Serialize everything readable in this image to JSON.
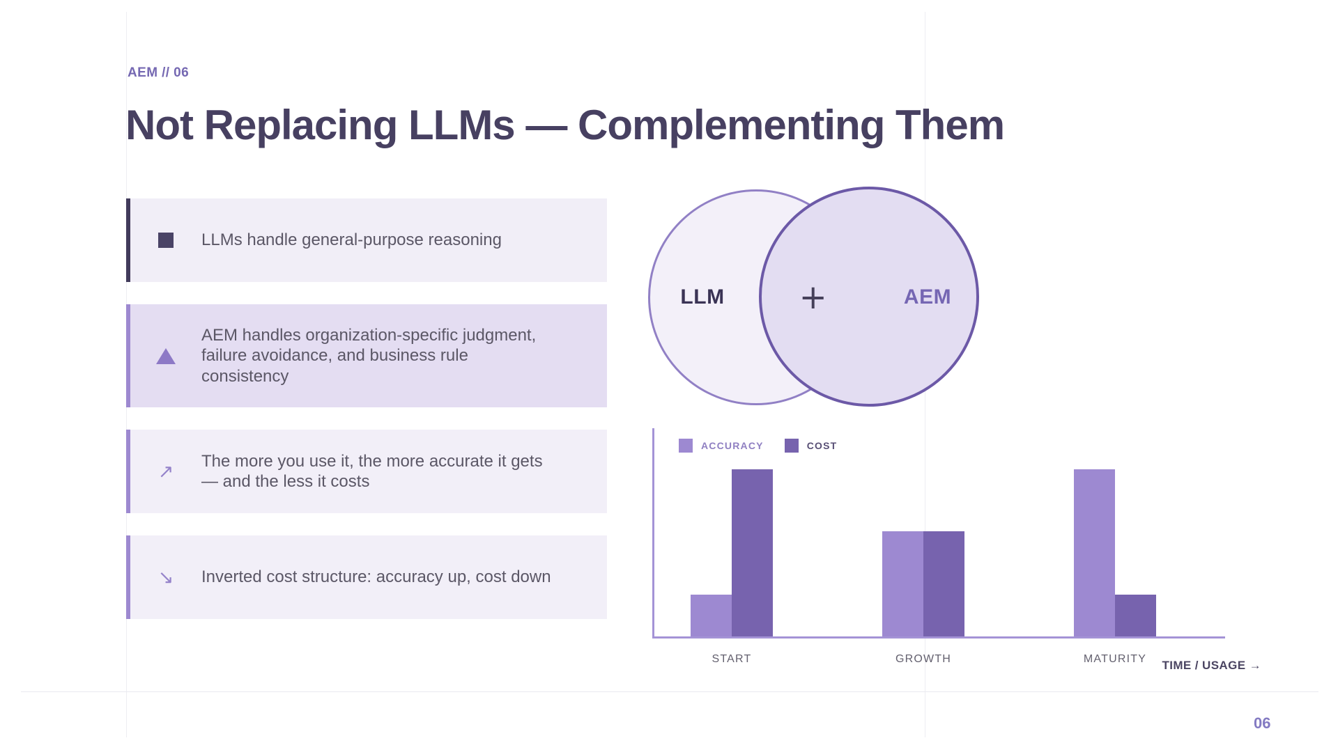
{
  "slide": {
    "eyebrow": "AEM // 06",
    "title": "Not Replacing LLMs — Complementing Them",
    "page_number": "06"
  },
  "list": {
    "items": [
      {
        "icon": "square-icon",
        "text": "LLMs handle general-purpose reasoning"
      },
      {
        "icon": "triangle-icon",
        "text": "AEM handles organization-specific judgment, failure avoidance, and business rule consistency"
      },
      {
        "icon": "arrow-up-right-icon",
        "text": "The more you use it, the more accurate it gets — and the less it costs"
      },
      {
        "icon": "arrow-down-right-icon",
        "text": "Inverted cost structure: accuracy up, cost down"
      }
    ]
  },
  "icons": {
    "arrow_up_right": "↗",
    "arrow_down_right": "↘"
  },
  "venn": {
    "left_label": "LLM",
    "plus": "+",
    "right_label": "AEM"
  },
  "chart_data": {
    "type": "bar",
    "categories": [
      "START",
      "GROWTH",
      "MATURITY"
    ],
    "series": [
      {
        "name": "ACCURACY",
        "values": [
          25,
          63,
          100
        ],
        "color": "#9d89d1",
        "label_color": "#9080c2"
      },
      {
        "name": "COST",
        "values": [
          100,
          63,
          25
        ],
        "color": "#7763ae",
        "label_color": "#584f75"
      }
    ],
    "title": "",
    "xlabel": "TIME / USAGE →",
    "ylabel": "",
    "ylim": [
      0,
      100
    ],
    "grid": false,
    "legend_position": "top-left",
    "note": "values are relative bar heights in percent of tallest bar"
  },
  "colors": {
    "accent_purple": "#7568b2",
    "title_text": "#474061",
    "body_text": "#5b5766",
    "card_bg_light": "#f2eff8",
    "card_bg_accent": "#e4ddf2",
    "card_border_dark": "#423b5b",
    "card_border_purple": "#9d89d0",
    "venn_left_fill": "#f3f0f9",
    "venn_left_stroke": "#9180c5",
    "venn_right_fill": "#e3ddf2",
    "venn_right_stroke": "#6c59a7",
    "axis": "#a493d6",
    "category_text": "#63606e",
    "page_number": "#837ac2"
  }
}
